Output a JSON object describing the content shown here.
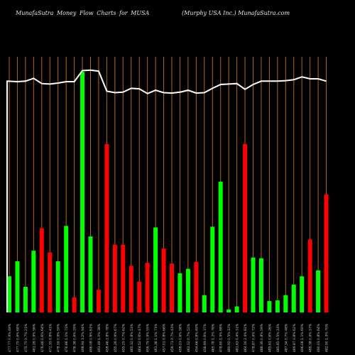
{
  "header": {
    "left": "MunafaSutra  Money Flow  Charts for MUSA",
    "right": "(Murphy USA Inc.) MunafaSutra.com"
  },
  "colors": {
    "background": "#000000",
    "gridline": "#b5651d",
    "positive": "#00ff00",
    "negative": "#ff0000",
    "price_line": "#ffffff",
    "label": "#cccccc"
  },
  "chart_data": {
    "type": "bar",
    "title": "MunafaSutra  Money Flow  Charts for MUSA",
    "subtitle": "(Murphy USA Inc.) MunafaSutra.com",
    "categories": [
      "477.77 0.9% 49%",
      "477.75 0.6% 68%",
      "475.75 0.7% 21%",
      "481.28 0.9% 56%",
      "476.46 0.6% 64%",
      "472.35 0.8% 41%",
      "478.16 0.9% 59%",
      "476.86 1.1% 73%",
      "476.38 0.6% 29%",
      "498.94 3.2% 94%",
      "496.08 0.8% 61%",
      "491.49 1.0% 38%",
      "458.46 2.8% 78%",
      "455.26 0.9% 67%",
      "455.25 0.7% 62%",
      "465.32 0.8% 53%",
      "464.52 0.6% 47%",
      "456.79 0.9% 55%",
      "461.36 1.1% 71%",
      "457.01 0.8% 66%",
      "456.73 0.7% 43%",
      "458.03 0.6% 58%",
      "462.52 0.7% 52%",
      "454.66 0.8% 49%",
      "456.69 0.6% 37%",
      "465.78 1.2% 76%",
      "478.60 1.9% 88%",
      "480.92 0.5% 12%",
      "481.63 0.4% 31%",
      "464.16 2.4% 82%",
      "478.87 0.9% 72%",
      "486.36 0.8% 59%",
      "485.61 0.6% 26%",
      "485.65 0.5% 33%",
      "487.34 0.7% 48%",
      "489.87 0.8% 62%",
      "496.08 1.1% 69%",
      "489.38 0.9% 57%",
      "490.01 0.8% 64%",
      "482.90 1.3% 70%"
    ],
    "x": [
      1,
      2,
      3,
      4,
      5,
      6,
      7,
      8,
      9,
      10,
      11,
      12,
      13,
      14,
      15,
      16,
      17,
      18,
      19,
      20,
      21,
      22,
      23,
      24,
      25,
      26,
      27,
      28,
      29,
      30,
      31,
      32,
      33,
      34,
      35,
      36,
      37,
      38,
      39,
      40
    ],
    "series": [
      {
        "values": [
          48,
          68,
          34,
          82,
          112,
          80,
          68,
          115,
          20,
          320,
          101,
          30,
          224,
          90,
          90,
          62,
          41,
          66,
          113,
          85,
          65,
          52,
          58,
          67,
          23,
          114,
          174,
          4,
          8,
          224,
          73,
          72,
          15,
          16,
          23,
          37,
          48,
          97,
          56,
          157
        ],
        "direction": [
          "up",
          "up",
          "up",
          "up",
          "down",
          "down",
          "up",
          "up",
          "down",
          "up",
          "up",
          "down",
          "down",
          "down",
          "down",
          "down",
          "down",
          "down",
          "up",
          "down",
          "down",
          "up",
          "up",
          "down",
          "up",
          "up",
          "up",
          "up",
          "up",
          "down",
          "up",
          "up",
          "up",
          "up",
          "up",
          "up",
          "up",
          "down",
          "up",
          "down"
        ]
      },
      {
        "values": [
          484,
          483,
          484,
          490,
          479,
          478,
          480,
          483,
          483,
          506,
          507,
          505,
          463,
          460,
          461,
          469,
          468,
          458,
          465,
          460,
          459,
          461,
          465,
          459,
          460,
          469,
          477,
          478,
          479,
          467,
          477,
          484,
          484,
          484,
          485,
          487,
          493,
          489,
          489,
          484
        ]
      }
    ],
    "ylim": [
      0,
      340
    ],
    "price_ylim": [
      0,
      535
    ],
    "grid": true,
    "legend": "none"
  }
}
